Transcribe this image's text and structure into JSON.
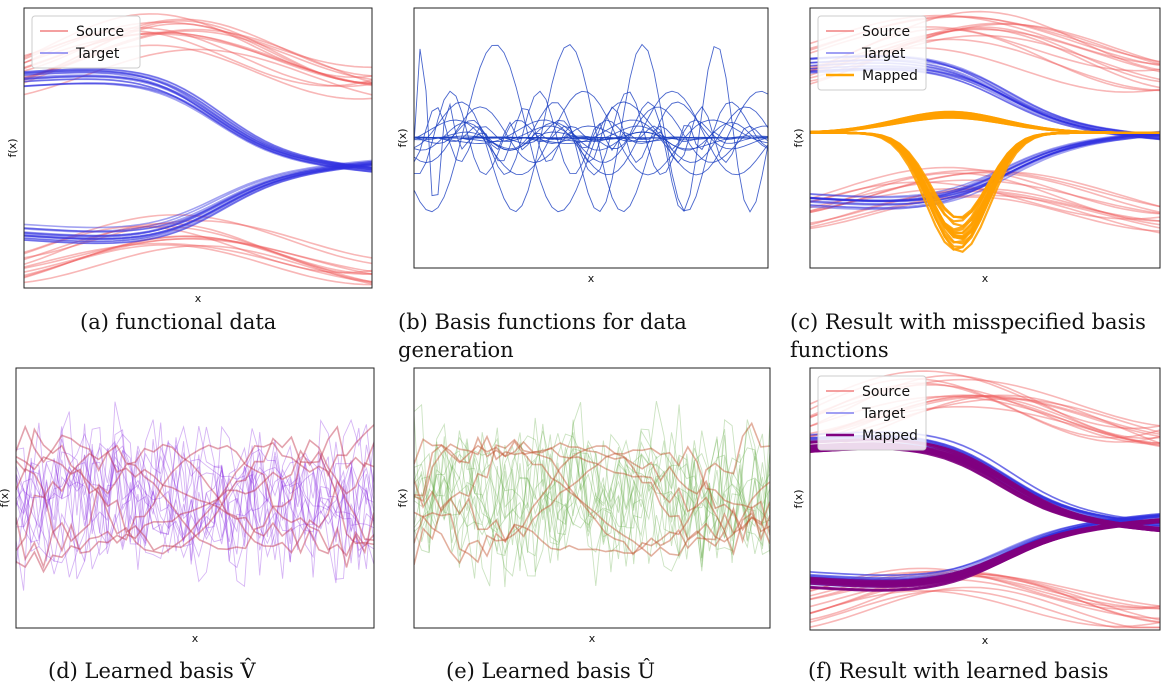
{
  "chart_data": [
    {
      "id": "a",
      "type": "line",
      "xlabel": "x",
      "ylabel": "f(x)",
      "caption": "(a) functional data",
      "legend": {
        "position": "top-left",
        "entries": [
          {
            "name": "Source",
            "color": "#f08080"
          },
          {
            "name": "Target",
            "color": "#8080f0"
          }
        ]
      },
      "series_groups": [
        {
          "name": "Source",
          "color": "#f06060",
          "count": 14,
          "shape": "sine-rising",
          "level": 0.82,
          "amp": 0.1,
          "spread": 0.06
        },
        {
          "name": "Source",
          "color": "#f06060",
          "count": 12,
          "shape": "sine-rising",
          "level": 0.12,
          "amp": 0.08,
          "spread": 0.05
        },
        {
          "name": "Target",
          "color": "#3030e0",
          "count": 16,
          "shape": "sigmoid-down",
          "from": 0.75,
          "to": 0.42,
          "spread": 0.03
        },
        {
          "name": "Target",
          "color": "#3030e0",
          "count": 16,
          "shape": "sigmoid-up",
          "from": 0.2,
          "to": 0.45,
          "spread": 0.03
        }
      ]
    },
    {
      "id": "b",
      "type": "line",
      "xlabel": "x",
      "ylabel": "f(x)",
      "caption": "(b) Basis functions for data generation",
      "series_groups": [
        {
          "name": "basis",
          "color": "#1a3fc0",
          "count": 24,
          "shape": "wavelets"
        }
      ]
    },
    {
      "id": "c",
      "type": "line",
      "xlabel": "x",
      "ylabel": "f(x)",
      "caption": "(c) Result with misspecified basis functions",
      "legend": {
        "position": "top-left",
        "entries": [
          {
            "name": "Source",
            "color": "#f08080"
          },
          {
            "name": "Target",
            "color": "#8080f0"
          },
          {
            "name": "Mapped",
            "color": "#ffa500"
          }
        ]
      },
      "series_groups": [
        {
          "name": "Source",
          "color": "#f06060",
          "count": 14,
          "shape": "sine-rising",
          "level": 0.82,
          "amp": 0.1,
          "spread": 0.06
        },
        {
          "name": "Source",
          "color": "#f06060",
          "count": 12,
          "shape": "sine-rising",
          "level": 0.25,
          "amp": 0.08,
          "spread": 0.05
        },
        {
          "name": "Target",
          "color": "#3030e0",
          "count": 16,
          "shape": "sigmoid-down",
          "from": 0.78,
          "to": 0.5,
          "spread": 0.03
        },
        {
          "name": "Target",
          "color": "#3030e0",
          "count": 16,
          "shape": "sigmoid-up",
          "from": 0.26,
          "to": 0.52,
          "spread": 0.03
        },
        {
          "name": "Mapped",
          "color": "#ffa000",
          "count": 18,
          "shape": "bump-up",
          "base": 0.52,
          "depth": 0.07
        },
        {
          "name": "Mapped",
          "color": "#ffa000",
          "count": 18,
          "shape": "bump-down",
          "base": 0.52,
          "depth": 0.4
        }
      ]
    },
    {
      "id": "d",
      "type": "line",
      "xlabel": "x",
      "ylabel": "f(x)",
      "caption": "(d) Learned basis V̂",
      "series_groups": [
        {
          "name": "basis",
          "color": "#8a2be2",
          "count": 14,
          "shape": "noisy"
        },
        {
          "name": "basis",
          "color": "#c0304a",
          "count": 7,
          "shape": "smooth"
        }
      ]
    },
    {
      "id": "e",
      "type": "line",
      "xlabel": "x",
      "ylabel": "f(x)",
      "caption": "(e) Learned basis Û",
      "series_groups": [
        {
          "name": "basis",
          "color": "#6ab04c",
          "count": 14,
          "shape": "noisy"
        },
        {
          "name": "basis",
          "color": "#c0502a",
          "count": 7,
          "shape": "smooth"
        }
      ]
    },
    {
      "id": "f",
      "type": "line",
      "xlabel": "x",
      "ylabel": "f(x)",
      "caption": "(f) Result with learned basis",
      "legend": {
        "position": "top-left",
        "entries": [
          {
            "name": "Source",
            "color": "#f08080"
          },
          {
            "name": "Target",
            "color": "#8080f0"
          },
          {
            "name": "Mapped",
            "color": "#800080"
          }
        ]
      },
      "series_groups": [
        {
          "name": "Source",
          "color": "#f06060",
          "count": 14,
          "shape": "sine-rising",
          "level": 0.82,
          "amp": 0.1,
          "spread": 0.06
        },
        {
          "name": "Source",
          "color": "#f06060",
          "count": 12,
          "shape": "sine-rising",
          "level": 0.12,
          "amp": 0.08,
          "spread": 0.05
        },
        {
          "name": "Target",
          "color": "#3030e0",
          "count": 16,
          "shape": "sigmoid-down",
          "from": 0.72,
          "to": 0.4,
          "spread": 0.03
        },
        {
          "name": "Target",
          "color": "#3030e0",
          "count": 16,
          "shape": "sigmoid-up",
          "from": 0.2,
          "to": 0.44,
          "spread": 0.03
        },
        {
          "name": "Mapped",
          "color": "#800080",
          "count": 14,
          "shape": "sigmoid-down",
          "from": 0.7,
          "to": 0.38,
          "spread": 0.02
        },
        {
          "name": "Mapped",
          "color": "#800080",
          "count": 14,
          "shape": "sigmoid-up",
          "from": 0.18,
          "to": 0.42,
          "spread": 0.02
        }
      ]
    }
  ]
}
